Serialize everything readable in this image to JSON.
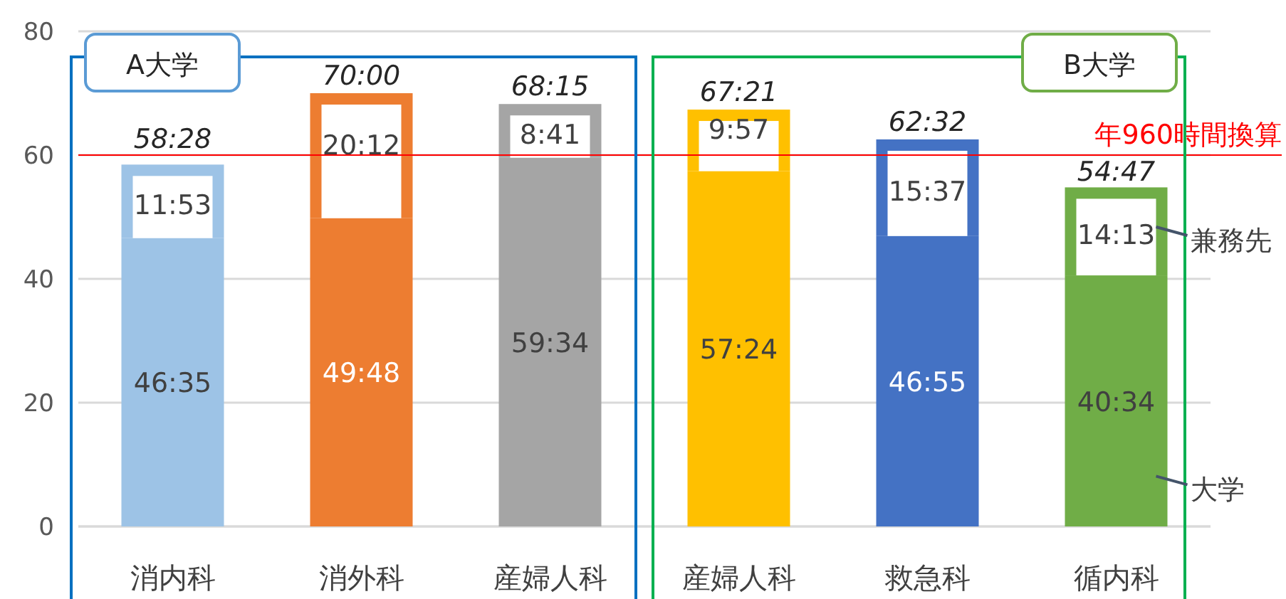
{
  "chart_data": {
    "type": "bar",
    "stacked": true,
    "categories": [
      "消内科",
      "消外科",
      "産婦人科",
      "産婦人科",
      "救急科",
      "循内科"
    ],
    "series": [
      {
        "name": "大学",
        "colors": [
          "#9dc3e6",
          "#ed7d31",
          "#a5a5a5",
          "#ffc000",
          "#4472c4",
          "#70ad47"
        ],
        "values": [
          46.583,
          49.8,
          59.567,
          57.4,
          46.917,
          40.567
        ],
        "value_labels": [
          "46:35",
          "49:48",
          "59:34",
          "57:24",
          "46:55",
          "40:34"
        ]
      },
      {
        "name": "兼務先",
        "colors": [
          "#9dc3e6",
          "#ed7d31",
          "#a5a5a5",
          "#ffc000",
          "#4472c4",
          "#70ad47"
        ],
        "values": [
          11.883,
          20.2,
          8.683,
          9.95,
          15.617,
          14.217
        ],
        "value_labels": [
          "11:53",
          "20:12",
          "8:41",
          "9:57",
          "15:37",
          "14:13"
        ]
      }
    ],
    "totals": [
      "58:28",
      "70:00",
      "68:15",
      "67:21",
      "62:32",
      "54:47"
    ],
    "ylim": [
      0,
      80
    ],
    "yticks": [
      0,
      20,
      40,
      60,
      80
    ],
    "grid": "y",
    "ref_lines": [
      {
        "axis": "y",
        "value": 60,
        "label": "年960時間換算",
        "color": "#ff0000"
      }
    ],
    "annotations": [
      "A大学",
      "B大学"
    ],
    "legend": "right"
  }
}
